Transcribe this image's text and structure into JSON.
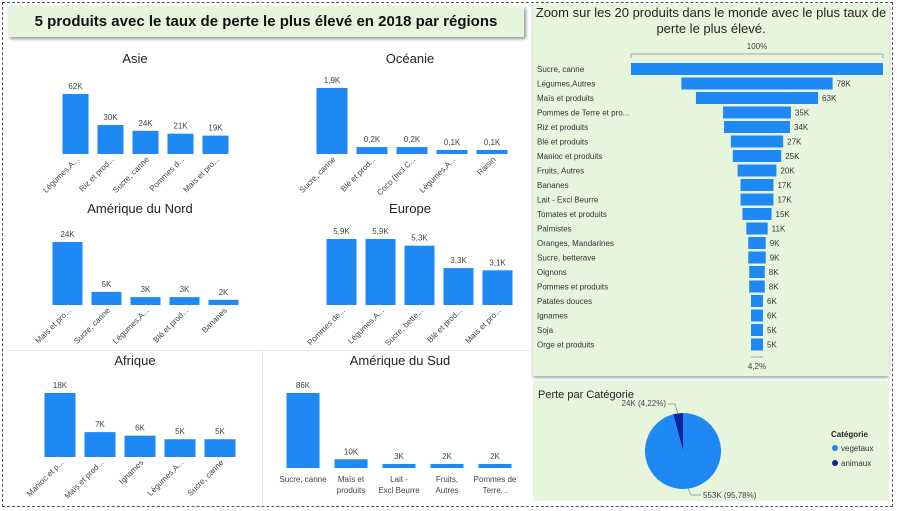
{
  "page": {
    "title": "5 produits avec le taux de perte le plus élevé en 2018 par régions"
  },
  "colors": {
    "bar": "#1e88f5",
    "dark": "#12239e",
    "panel": "#e8f5dd"
  },
  "chart_data": [
    {
      "type": "bar",
      "title": "Asie",
      "categories": [
        "Légumes,A...",
        "Riz et prod...",
        "Sucre, canne",
        "Pommes d...",
        "Maïs et pro..."
      ],
      "values": [
        62,
        30,
        24,
        21,
        19
      ],
      "labels": [
        "62K",
        "30K",
        "24K",
        "21K",
        "19K"
      ]
    },
    {
      "type": "bar",
      "title": "Océanie",
      "categories": [
        "Sucre, canne",
        "Blé et prod...",
        "Coco (Incl C...",
        "Légumes,A...",
        "Raisin"
      ],
      "values": [
        1.9,
        0.2,
        0.2,
        0.1,
        0.1
      ],
      "labels": [
        "1,9K",
        "0,2K",
        "0,2K",
        "0,1K",
        "0,1K"
      ]
    },
    {
      "type": "bar",
      "title": "Amérique du Nord",
      "categories": [
        "Maïs et pro...",
        "Sucre, canne",
        "Légumes,A...",
        "Blé et prod...",
        "Bananes"
      ],
      "values": [
        24,
        5,
        3,
        3,
        2
      ],
      "labels": [
        "24K",
        "5K",
        "3K",
        "3K",
        "2K"
      ]
    },
    {
      "type": "bar",
      "title": "Europe",
      "categories": [
        "Pommes de...",
        "Légumes,A...",
        "Sucre, bette...",
        "Blé et prod...",
        "Maïs et pro..."
      ],
      "values": [
        5.9,
        5.9,
        5.3,
        3.3,
        3.1
      ],
      "labels": [
        "5,9K",
        "5,9K",
        "5,3K",
        "3,3K",
        "3,1K"
      ]
    },
    {
      "type": "bar",
      "title": "Afrique",
      "categories": [
        "Manioc et p...",
        "Maïs et prod...",
        "Ignames",
        "Légumes,A...",
        "Sucre, canne"
      ],
      "values": [
        18,
        7,
        6,
        5,
        5
      ],
      "labels": [
        "18K",
        "7K",
        "6K",
        "5K",
        "5K"
      ]
    },
    {
      "type": "bar",
      "title": "Amérique du Sud",
      "categories": [
        "Sucre, canne",
        "Maïs et produits",
        "Lait - Excl Beurre",
        "Fruits, Autres",
        "Pommes de Terre..."
      ],
      "values": [
        86,
        10,
        3,
        2,
        2
      ],
      "labels": [
        "86K",
        "10K",
        "3K",
        "2K",
        "2K"
      ]
    },
    {
      "type": "bar",
      "orientation": "funnel",
      "title": "Zoom sur les 20 produits dans le monde avec le plus taux de perte le plus élevé.",
      "top_label": "100%",
      "bottom_label": "4,2%",
      "categories": [
        "Sucre, canne",
        "Légumes,Autres",
        "Maïs et produits",
        "Pommes de Terre et pro...",
        "Riz et produits",
        "Blé et produits",
        "Manioc et produits",
        "Fruits, Autres",
        "Bananes",
        "Lait - Excl Beurre",
        "Tomates et produits",
        "Palmistes",
        "Oranges, Mandarines",
        "Sucre, betterave",
        "Oignons",
        "Pommes et produits",
        "Patates douces",
        "Ignames",
        "Soja",
        "Orge et produits"
      ],
      "values": [
        130,
        78,
        63,
        35,
        34,
        27,
        25,
        20,
        17,
        17,
        15,
        11,
        9,
        9,
        8,
        8,
        6,
        6,
        5,
        5
      ],
      "labels": [
        "",
        "78K",
        "63K",
        "35K",
        "34K",
        "27K",
        "25K",
        "20K",
        "17K",
        "17K",
        "15K",
        "11K",
        "9K",
        "9K",
        "8K",
        "8K",
        "6K",
        "6K",
        "5K",
        "5K"
      ]
    },
    {
      "type": "pie",
      "title": "Perte par Catégorie",
      "legend_title": "Catégorie",
      "legend_position": "right",
      "slices": [
        {
          "name": "vegetaux",
          "value": 553,
          "label": "553K (95,78%)",
          "color": "#1e88f5"
        },
        {
          "name": "animaux",
          "value": 24,
          "label": "24K (4,22%)",
          "color": "#12239e"
        }
      ]
    }
  ]
}
